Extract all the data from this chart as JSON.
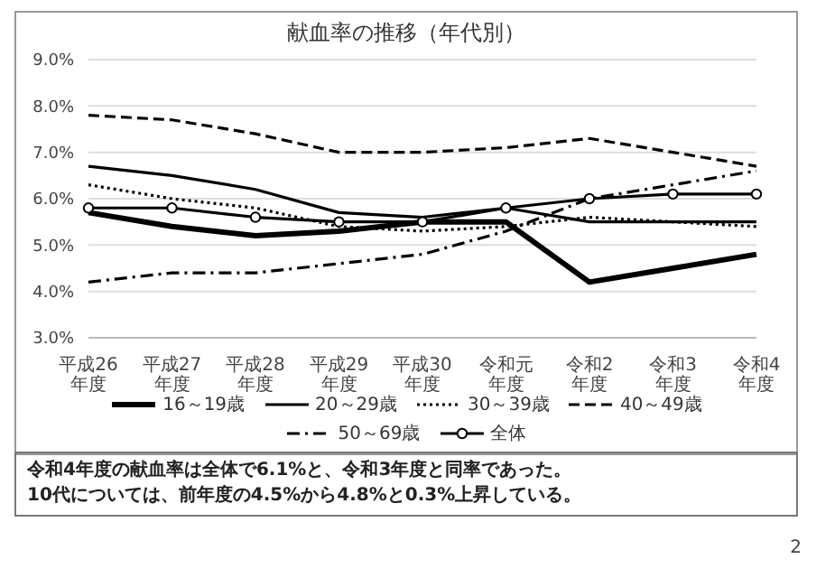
{
  "chart_data": {
    "type": "line",
    "title": "献血率の推移（年代別）",
    "categories": [
      "平成26年度",
      "平成27年度",
      "平成28年度",
      "平成29年度",
      "平成30年度",
      "令和元年度",
      "令和2年度",
      "令和3年度",
      "令和4年度"
    ],
    "series": [
      {
        "name": "16～19歳",
        "color": "#000000",
        "line_style": "solid",
        "values": [
          5.7,
          5.4,
          5.2,
          5.3,
          5.5,
          5.5,
          4.2,
          4.5,
          4.8
        ]
      },
      {
        "name": "20～29歳",
        "color": "#000000",
        "line_style": "solid",
        "values": [
          6.7,
          6.5,
          6.2,
          5.7,
          5.6,
          5.8,
          5.5,
          5.5,
          5.5
        ]
      },
      {
        "name": "30～39歳",
        "color": "#000000",
        "line_style": "dotted",
        "values": [
          6.3,
          6.0,
          5.8,
          5.4,
          5.3,
          5.4,
          5.6,
          5.5,
          5.4
        ]
      },
      {
        "name": "40～49歳",
        "color": "#000000",
        "line_style": "dashed",
        "values": [
          7.8,
          7.7,
          7.4,
          7.0,
          7.0,
          7.1,
          7.3,
          7.0,
          6.7
        ]
      },
      {
        "name": "50～69歳",
        "color": "#000000",
        "line_style": "dashdot",
        "values": [
          4.2,
          4.4,
          4.4,
          4.6,
          4.8,
          5.3,
          6.0,
          6.3,
          6.6
        ]
      },
      {
        "name": "全体",
        "color": "#000000",
        "line_style": "solid",
        "marker": "circle",
        "values": [
          5.8,
          5.8,
          5.6,
          5.5,
          5.5,
          5.8,
          6.0,
          6.1,
          6.1
        ]
      }
    ],
    "ylim": [
      3,
      9
    ],
    "yticks": [
      {
        "value": 3,
        "label": "3.0%"
      },
      {
        "value": 4,
        "label": "4.0%"
      },
      {
        "value": 5,
        "label": "5.0%"
      },
      {
        "value": 6,
        "label": "6.0%"
      },
      {
        "value": 7,
        "label": "7.0%"
      },
      {
        "value": 8,
        "label": "8.0%"
      },
      {
        "value": 9,
        "label": "9.0%"
      }
    ],
    "grid": "y",
    "legend": "bottom",
    "marker": "none",
    "annotations": [
      "令和4年度の献血率は全体で6.1%と、令和3年度と同率であった。",
      "10代については、前年度の4.5%から4.8%と0.3%上昇している。",
      "2"
    ]
  }
}
